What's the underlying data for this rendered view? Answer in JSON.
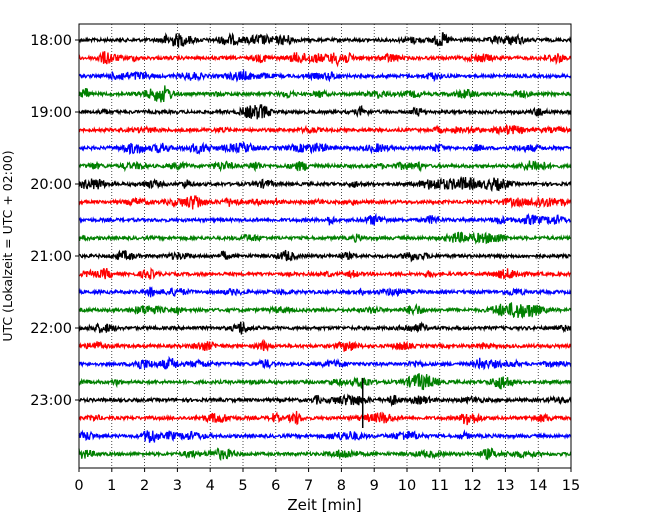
{
  "chart_data": {
    "type": "line",
    "subtype": "seismogram-helicorder",
    "xlabel": "Zeit  [min]",
    "ylabel": "UTC (Lokalzeit = UTC + 02:00)",
    "xlim": [
      0,
      15
    ],
    "x_ticks": [
      "0",
      "1",
      "2",
      "3",
      "4",
      "5",
      "6",
      "7",
      "8",
      "9",
      "10",
      "11",
      "12",
      "13",
      "14",
      "15"
    ],
    "y_ticks": [
      {
        "label": "18:00",
        "row": 0
      },
      {
        "label": "19:00",
        "row": 4
      },
      {
        "label": "20:00",
        "row": 8
      },
      {
        "label": "21:00",
        "row": 12
      },
      {
        "label": "22:00",
        "row": 16
      },
      {
        "label": "23:00",
        "row": 20
      }
    ],
    "grid": "vertical dotted at every minute",
    "trace_minutes": 15,
    "trace_colors": [
      "#000000",
      "#ff0000",
      "#0000ff",
      "#008000"
    ],
    "traces": [
      {
        "start": "18:00"
      },
      {
        "start": "18:15"
      },
      {
        "start": "18:30"
      },
      {
        "start": "18:45"
      },
      {
        "start": "19:00"
      },
      {
        "start": "19:15"
      },
      {
        "start": "19:30"
      },
      {
        "start": "19:45"
      },
      {
        "start": "20:00"
      },
      {
        "start": "20:15"
      },
      {
        "start": "20:30"
      },
      {
        "start": "20:45"
      },
      {
        "start": "21:00"
      },
      {
        "start": "21:15"
      },
      {
        "start": "21:30"
      },
      {
        "start": "21:45"
      },
      {
        "start": "22:00"
      },
      {
        "start": "22:15"
      },
      {
        "start": "22:30"
      },
      {
        "start": "22:45"
      },
      {
        "start": "23:00"
      },
      {
        "start": "23:15"
      },
      {
        "start": "23:30"
      },
      {
        "start": "23:45"
      }
    ],
    "notable_event": {
      "trace_start": "23:00",
      "minute": 8.65
    }
  }
}
